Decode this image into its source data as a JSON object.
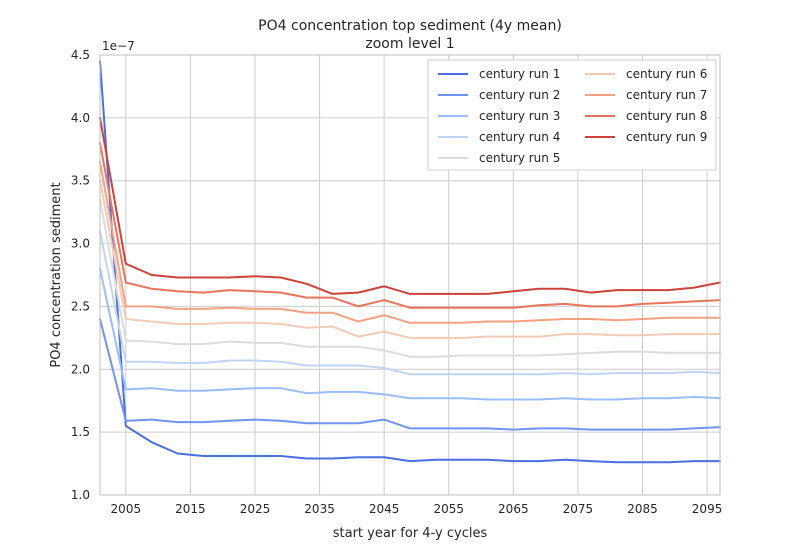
{
  "chart_data": {
    "type": "line",
    "title": "PO4 concentration top sediment (4y mean)",
    "subtitle": "zoom level 1",
    "xlabel": "start year for 4-y cycles",
    "ylabel": "PO4 concentration sediment",
    "y_offset_label": "1e−7",
    "xlim": [
      2001,
      2097
    ],
    "ylim": [
      1.0,
      4.5
    ],
    "y_multiplier": 1e-07,
    "xticks": [
      "2005",
      "2015",
      "2025",
      "2035",
      "2045",
      "2055",
      "2065",
      "2075",
      "2085",
      "2095"
    ],
    "yticks": [
      "1.0",
      "1.5",
      "2.0",
      "2.5",
      "3.0",
      "3.5",
      "4.0",
      "4.5"
    ],
    "grid": true,
    "legend_position": "top-right",
    "x": [
      2001,
      2005,
      2009,
      2013,
      2017,
      2021,
      2025,
      2029,
      2033,
      2037,
      2041,
      2045,
      2049,
      2053,
      2057,
      2061,
      2065,
      2069,
      2073,
      2077,
      2081,
      2085,
      2089,
      2093,
      2097
    ],
    "series": [
      {
        "name": "century run 1",
        "color": "#4a6fe3",
        "values": [
          4.45,
          1.55,
          1.42,
          1.33,
          1.31,
          1.31,
          1.31,
          1.31,
          1.29,
          1.29,
          1.3,
          1.3,
          1.27,
          1.28,
          1.28,
          1.28,
          1.27,
          1.27,
          1.28,
          1.27,
          1.26,
          1.26,
          1.26,
          1.27,
          1.27
        ]
      },
      {
        "name": "century run 2",
        "color": "#7093f3",
        "values": [
          2.4,
          1.59,
          1.6,
          1.58,
          1.58,
          1.59,
          1.6,
          1.59,
          1.57,
          1.57,
          1.57,
          1.6,
          1.53,
          1.53,
          1.53,
          1.53,
          1.52,
          1.53,
          1.53,
          1.52,
          1.52,
          1.52,
          1.52,
          1.53,
          1.54
        ]
      },
      {
        "name": "century run 3",
        "color": "#9bbcff",
        "values": [
          2.8,
          1.84,
          1.85,
          1.83,
          1.83,
          1.84,
          1.85,
          1.85,
          1.81,
          1.82,
          1.82,
          1.8,
          1.77,
          1.77,
          1.77,
          1.76,
          1.76,
          1.76,
          1.77,
          1.76,
          1.76,
          1.77,
          1.77,
          1.78,
          1.77
        ]
      },
      {
        "name": "century run 4",
        "color": "#c0d4f5",
        "values": [
          3.1,
          2.06,
          2.06,
          2.05,
          2.05,
          2.07,
          2.07,
          2.06,
          2.03,
          2.03,
          2.03,
          2.01,
          1.96,
          1.96,
          1.96,
          1.96,
          1.96,
          1.96,
          1.97,
          1.96,
          1.97,
          1.97,
          1.97,
          1.98,
          1.97
        ]
      },
      {
        "name": "century run 5",
        "color": "#dddcdc",
        "values": [
          3.35,
          2.23,
          2.22,
          2.2,
          2.2,
          2.22,
          2.21,
          2.21,
          2.18,
          2.18,
          2.18,
          2.15,
          2.1,
          2.1,
          2.11,
          2.11,
          2.11,
          2.11,
          2.12,
          2.13,
          2.14,
          2.14,
          2.13,
          2.13,
          2.13
        ]
      },
      {
        "name": "century run 6",
        "color": "#f2cbb7",
        "values": [
          3.5,
          2.4,
          2.38,
          2.36,
          2.36,
          2.37,
          2.37,
          2.36,
          2.33,
          2.34,
          2.26,
          2.3,
          2.25,
          2.25,
          2.25,
          2.26,
          2.26,
          2.26,
          2.28,
          2.28,
          2.27,
          2.27,
          2.28,
          2.28,
          2.28
        ]
      },
      {
        "name": "century run 7",
        "color": "#f5a081",
        "values": [
          3.65,
          2.5,
          2.5,
          2.48,
          2.48,
          2.49,
          2.48,
          2.48,
          2.45,
          2.45,
          2.38,
          2.43,
          2.37,
          2.37,
          2.37,
          2.38,
          2.38,
          2.39,
          2.4,
          2.4,
          2.39,
          2.4,
          2.41,
          2.41,
          2.41
        ]
      },
      {
        "name": "century run 8",
        "color": "#e7745b",
        "values": [
          3.8,
          2.69,
          2.64,
          2.62,
          2.61,
          2.63,
          2.62,
          2.61,
          2.57,
          2.57,
          2.5,
          2.55,
          2.49,
          2.49,
          2.49,
          2.49,
          2.49,
          2.51,
          2.52,
          2.5,
          2.5,
          2.52,
          2.53,
          2.54,
          2.55
        ]
      },
      {
        "name": "century run 9",
        "color": "#cd423b",
        "values": [
          4.0,
          2.84,
          2.75,
          2.73,
          2.73,
          2.73,
          2.74,
          2.73,
          2.68,
          2.6,
          2.61,
          2.66,
          2.6,
          2.6,
          2.6,
          2.6,
          2.62,
          2.64,
          2.64,
          2.61,
          2.63,
          2.63,
          2.63,
          2.65,
          2.69
        ]
      }
    ]
  }
}
